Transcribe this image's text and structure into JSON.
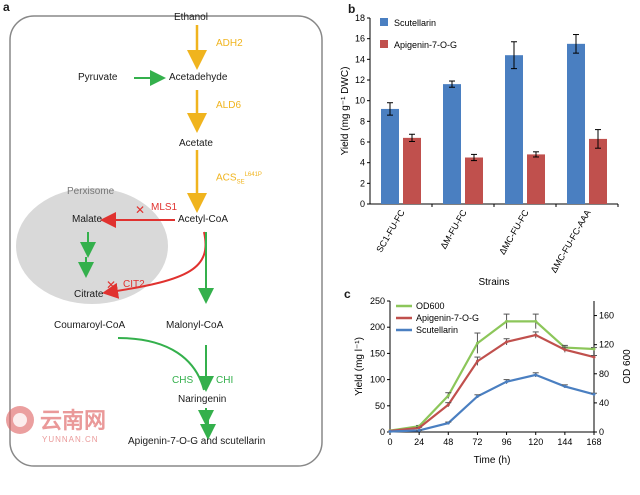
{
  "panel_a": {
    "label": "a",
    "compartment": "Perxisome",
    "metabolites": {
      "ethanol": "Ethanol",
      "pyruvate": "Pyruvate",
      "acetadehyde": "Acetadehyde",
      "acetate": "Acetate",
      "acetyl_coa": "Acetyl-CoA",
      "malate": "Malate",
      "citrate": "Citrate",
      "coumaroyl_coa": "Coumaroyl-CoA",
      "malonyl_coa": "Malonyl-CoA",
      "naringenin": "Naringenin",
      "products": "Apigenin-7-O-G and scutellarin"
    },
    "enzymes": {
      "adh2": "ADH2",
      "ald6": "ALD6",
      "acs": "ACS",
      "acs_sub": "SE",
      "acs_sup": "L641P",
      "mls1": "MLS1",
      "cit2": "CIT2",
      "chs": "CHS",
      "chi": "CHI"
    },
    "colors": {
      "yellow": "#f0b41e",
      "red": "#e0322f",
      "green": "#34b04c",
      "peroxisome": "#d9d9d9"
    }
  },
  "chart_data": [
    {
      "panel": "b",
      "type": "bar",
      "categories": [
        "SC1-FU-FC",
        "ΔM-FU-FC",
        "ΔMC-FU-FC",
        "ΔMC-FU-FC-AAA"
      ],
      "series": [
        {
          "name": "Scutellarin",
          "color": "#4a7fc1",
          "values": [
            9.2,
            11.6,
            14.4,
            15.5
          ],
          "errors": [
            0.6,
            0.3,
            1.3,
            0.9
          ]
        },
        {
          "name": "Apigenin-7-O-G",
          "color": "#c0504d",
          "values": [
            6.4,
            4.5,
            4.8,
            6.3
          ],
          "errors": [
            0.35,
            0.3,
            0.25,
            0.9
          ]
        }
      ],
      "xlabel": "Strains",
      "ylabel": "Yield (mg g⁻¹ DWC)",
      "ylim": [
        0,
        18
      ],
      "yticks": [
        0,
        2,
        4,
        6,
        8,
        10,
        12,
        14,
        16,
        18
      ],
      "legend": "top-left",
      "grid": false
    },
    {
      "panel": "c",
      "type": "line",
      "x": [
        0,
        24,
        48,
        72,
        96,
        120,
        144,
        168
      ],
      "series": [
        {
          "name": "OD600",
          "axis": "right",
          "color": "#8cc65a",
          "values": [
            2,
            8,
            50,
            122,
            152,
            152,
            116,
            114
          ],
          "errors": [
            0,
            1,
            4,
            14,
            10,
            10,
            3,
            2
          ]
        },
        {
          "name": "Apigenin-7-O-G",
          "axis": "left",
          "color": "#c0504d",
          "values": [
            2,
            8,
            52,
            135,
            172,
            185,
            157,
            143
          ],
          "errors": [
            0,
            1,
            4,
            8,
            6,
            6,
            5,
            3
          ]
        },
        {
          "name": "Scutellarin",
          "axis": "left",
          "color": "#4a7fc1",
          "values": [
            1,
            3,
            17,
            68,
            96,
            109,
            87,
            72
          ],
          "errors": [
            0,
            0.5,
            2,
            3,
            4,
            4,
            3,
            2
          ]
        }
      ],
      "xlabel": "Time (h)",
      "ylabel": "Yield (mg l⁻¹)",
      "y2label": "OD 600",
      "xticks": [
        0,
        24,
        48,
        72,
        96,
        120,
        144,
        168
      ],
      "ylim": [
        0,
        250
      ],
      "yticks": [
        0,
        50,
        100,
        150,
        200,
        250
      ],
      "y2lim": [
        0,
        180
      ],
      "y2ticks": [
        0,
        40,
        80,
        120,
        160
      ],
      "legend": "top-left",
      "grid": false
    }
  ],
  "watermark": {
    "cn": "云南网",
    "en": "YUNNAN.CN"
  }
}
